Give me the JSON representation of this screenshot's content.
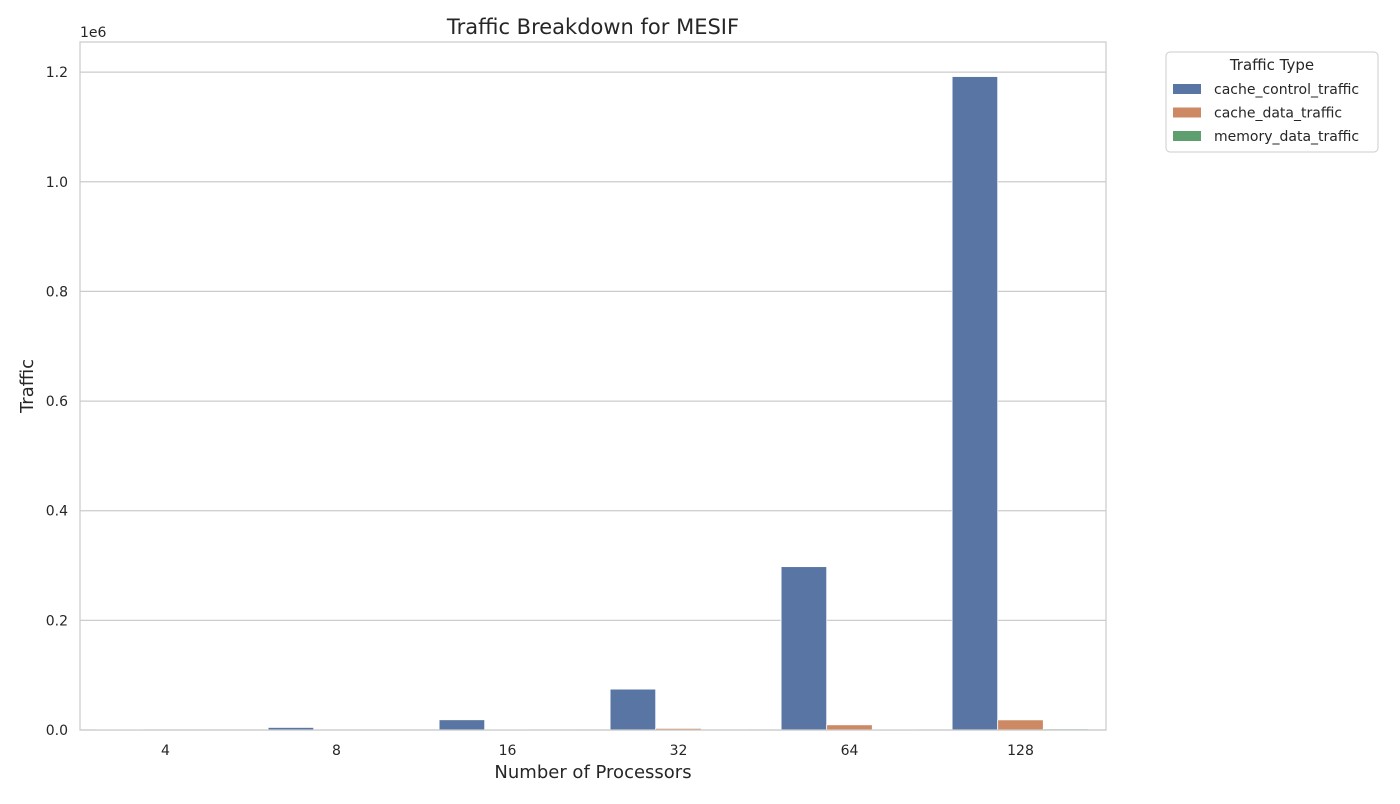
{
  "chart_data": {
    "type": "bar",
    "title": "Traffic Breakdown for MESIF",
    "xlabel": "Number of Processors",
    "ylabel": "Traffic",
    "y_offset_label": "1e6",
    "categories": [
      "4",
      "8",
      "16",
      "32",
      "64",
      "128"
    ],
    "series": [
      {
        "name": "cache_control_traffic",
        "color": "#5875a4",
        "values": [
          1200,
          4700,
          18700,
          74600,
          298000,
          1192000
        ]
      },
      {
        "name": "cache_data_traffic",
        "color": "#cc8963",
        "values": [
          200,
          500,
          1200,
          3000,
          9500,
          18500
        ]
      },
      {
        "name": "memory_data_traffic",
        "color": "#5f9e6e",
        "values": [
          100,
          150,
          250,
          500,
          1000,
          2000
        ]
      }
    ],
    "ylim": [
      0,
      1255000
    ],
    "yticks": [
      0,
      200000,
      400000,
      600000,
      800000,
      1000000,
      1200000
    ],
    "ytick_labels": [
      "0.0",
      "0.2",
      "0.4",
      "0.6",
      "0.8",
      "1.0",
      "1.2"
    ],
    "grid": true,
    "legend": {
      "title": "Traffic Type",
      "placement": "outside-top-right"
    }
  }
}
